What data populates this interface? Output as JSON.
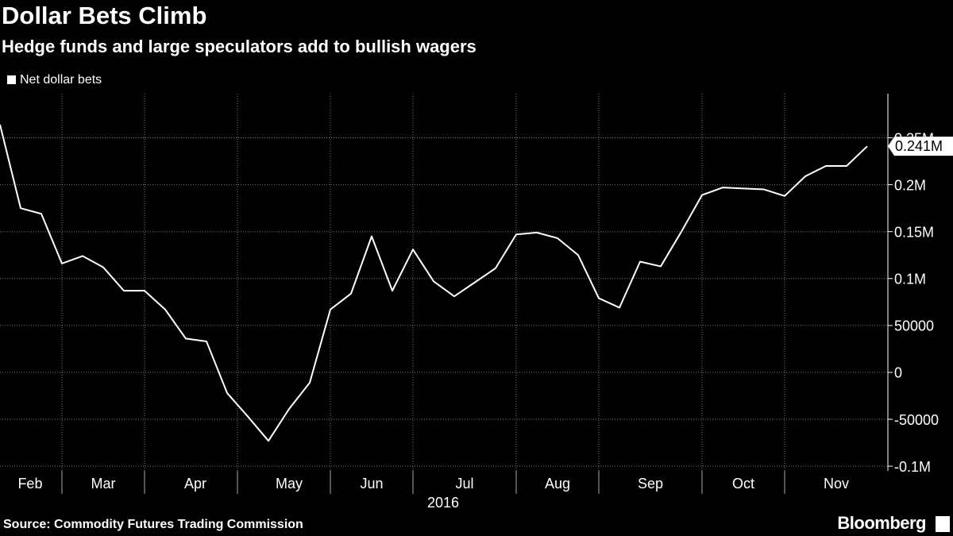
{
  "chart_data": {
    "type": "line",
    "title": "Dollar Bets Climb",
    "subtitle": "Hedge funds and large speculators add to bullish wagers",
    "source": "Source: Commodity Futures Trading Commission",
    "brand": "Bloomberg",
    "year_label": "2016",
    "x": [
      0,
      1,
      2,
      3,
      4,
      5,
      6,
      7,
      8,
      9,
      10,
      11,
      12,
      13,
      14,
      15,
      16,
      17,
      18,
      19,
      20,
      21,
      22,
      23,
      24,
      25,
      26,
      27,
      28,
      29,
      30,
      31,
      32,
      33,
      34,
      35,
      36,
      37,
      38,
      39,
      40,
      41,
      42
    ],
    "xlim": [
      0,
      43
    ],
    "xticks": [
      {
        "value": 1.46,
        "label": "Feb"
      },
      {
        "value": 5,
        "label": "Mar"
      },
      {
        "value": 9.46,
        "label": "Apr"
      },
      {
        "value": 14,
        "label": "May"
      },
      {
        "value": 18,
        "label": "Jun"
      },
      {
        "value": 22.5,
        "label": "Jul"
      },
      {
        "value": 27,
        "label": "Aug"
      },
      {
        "value": 31.5,
        "label": "Sep"
      },
      {
        "value": 36,
        "label": "Oct"
      },
      {
        "value": 40.5,
        "label": "Nov"
      }
    ],
    "xgrid": [
      3,
      7,
      11.5,
      16,
      20,
      25,
      29,
      34,
      38
    ],
    "ylim": [
      -105000,
      297000
    ],
    "yticks": [
      {
        "value": -100000,
        "label": "-0.1M"
      },
      -50000,
      0,
      50000,
      {
        "value": 100000,
        "label": "0.1M"
      },
      {
        "value": 150000,
        "label": "0.15M"
      },
      {
        "value": 200000,
        "label": "0.2M"
      },
      {
        "value": 250000,
        "label": "0.25M"
      }
    ],
    "grid": true,
    "series": [
      {
        "name": "Net dollar bets",
        "color": "#ffffff",
        "values": [
          264000,
          175000,
          169000,
          116000,
          124000,
          112000,
          87000,
          87000,
          67000,
          36000,
          33000,
          -22000,
          -47000,
          -73000,
          -39000,
          -11000,
          67000,
          84000,
          145000,
          87000,
          131000,
          97000,
          81000,
          96000,
          111000,
          147000,
          149000,
          143000,
          125000,
          79000,
          69000,
          118000,
          113000,
          150000,
          189000,
          197000,
          196000,
          195000,
          188000,
          209000,
          220000,
          220000,
          241000
        ],
        "value_labels": [
          null,
          null,
          null,
          null,
          null,
          null,
          null,
          null,
          null,
          null,
          null,
          null,
          null,
          null,
          null,
          null,
          null,
          null,
          null,
          null,
          null,
          null,
          null,
          null,
          null,
          null,
          null,
          null,
          null,
          null,
          null,
          null,
          null,
          null,
          null,
          null,
          null,
          null,
          null,
          null,
          null,
          null,
          "0.241M"
        ]
      }
    ]
  }
}
